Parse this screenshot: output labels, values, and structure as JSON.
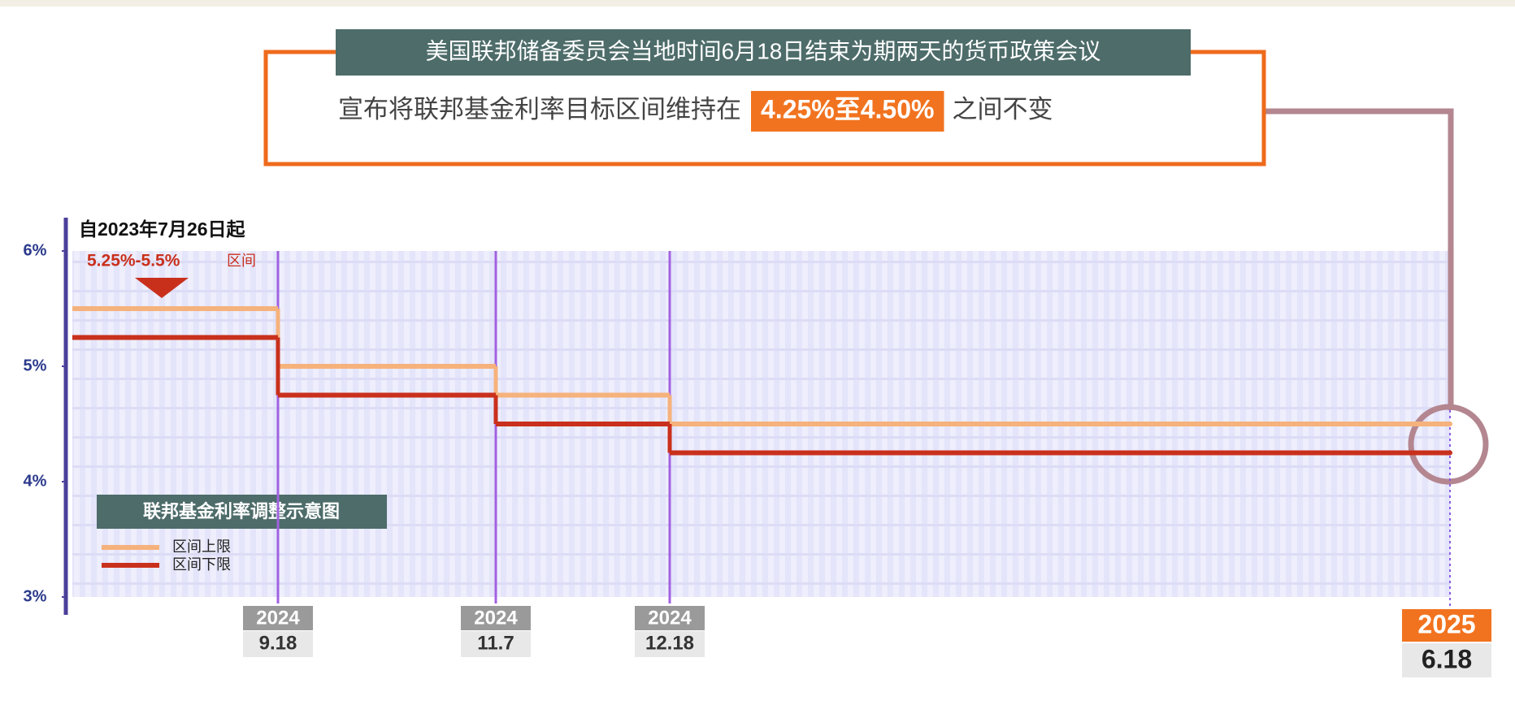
{
  "chart_data": {
    "type": "step",
    "title": "美国联邦储备委员会当地时间6月18日结束为期两天的货币政策会议",
    "subtitle": "宣布将联邦基金利率目标区间维持在",
    "highlight": "4.25%至4.50%",
    "subtitle_suffix": "之间不变",
    "start_note": "自2023年7月26日起",
    "start_range": "5.25%-5.5%",
    "start_range_suffix": "区间",
    "legend_title": "联邦基金利率调整示意图",
    "categories": [
      null,
      "9.18",
      "11.7",
      "12.18",
      "6.18"
    ],
    "category_years": [
      null,
      "2024",
      "2024",
      "2024",
      "2025"
    ],
    "series": [
      {
        "name": "区间上限",
        "color": "#f6b27c",
        "values": [
          5.5,
          5.0,
          4.75,
          4.5,
          4.5
        ]
      },
      {
        "name": "区间下限",
        "color": "#c9301c",
        "values": [
          5.25,
          4.75,
          4.5,
          4.25,
          4.25
        ]
      }
    ],
    "ylim": [
      3,
      6
    ],
    "yticks": [
      {
        "value": 3,
        "label": "3%"
      },
      {
        "value": 4,
        "label": "4%"
      },
      {
        "value": 5,
        "label": "5%"
      },
      {
        "value": 6,
        "label": "6%"
      }
    ]
  }
}
